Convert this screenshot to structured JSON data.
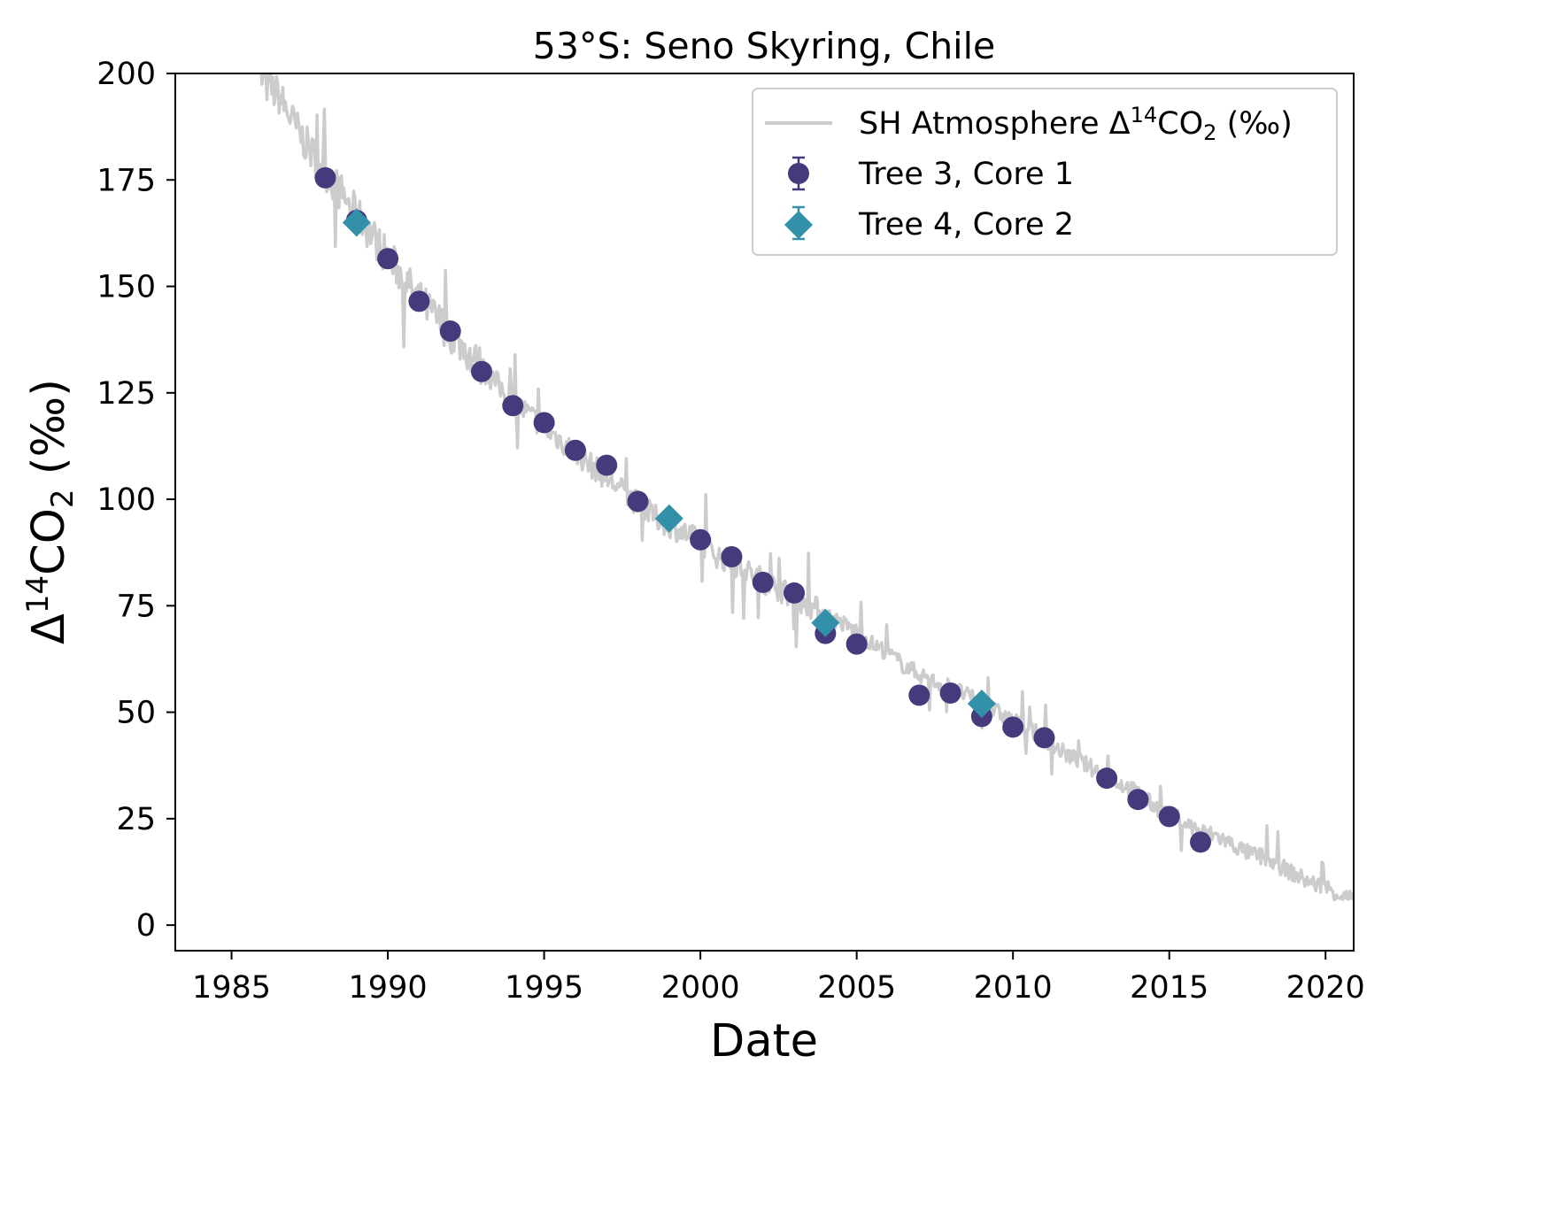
{
  "chart_data": {
    "type": "scatter",
    "title": "53°S: Seno Skyring, Chile",
    "xlabel": "Date",
    "ylabel": "Δ14CO2 (‰)",
    "xlim": [
      1983.2,
      2020.9
    ],
    "ylim": [
      -6,
      200
    ],
    "x_ticks": [
      "1985",
      "1990",
      "1995",
      "2000",
      "2005",
      "2010",
      "2015",
      "2020"
    ],
    "y_ticks": [
      "0",
      "25",
      "50",
      "75",
      "100",
      "125",
      "150",
      "175",
      "200"
    ],
    "grid": false,
    "legend_position": "top-right",
    "colors": {
      "atmosphere": "#cccccc",
      "tree3": "#443a7c",
      "tree4": "#3291a8"
    },
    "legend": {
      "atmosphere": "SH Atmosphere Δ14CO2 (‰)",
      "tree3": "Tree 3, Core 1",
      "tree4": "Tree 4, Core 2"
    },
    "atmosphere_series": {
      "name": "SH Atmosphere Δ14CO2 (‰)",
      "x": [
        1985.7,
        1986.0,
        1986.5,
        1987.0,
        1987.5,
        1988.0,
        1988.5,
        1989.0,
        1989.5,
        1990.0,
        1990.5,
        1991.0,
        1991.5,
        1992.0,
        1992.5,
        1993.0,
        1993.5,
        1994.0,
        1994.5,
        1995.0,
        1995.5,
        1996.0,
        1996.5,
        1997.0,
        1997.5,
        1998.0,
        1998.5,
        1999.0,
        1999.5,
        2000.0,
        2000.5,
        2001.0,
        2001.5,
        2002.0,
        2002.5,
        2003.0,
        2003.5,
        2004.0,
        2004.5,
        2005.0,
        2005.5,
        2006.0,
        2006.5,
        2007.0,
        2007.5,
        2008.0,
        2008.5,
        2009.0,
        2009.5,
        2010.0,
        2010.5,
        2011.0,
        2011.5,
        2012.0,
        2012.5,
        2013.0,
        2013.5,
        2014.0,
        2014.5,
        2015.0,
        2015.5,
        2016.0,
        2016.5,
        2017.0,
        2017.5,
        2018.0,
        2018.5,
        2019.0,
        2019.5,
        2020.0,
        2020.5,
        2020.9
      ],
      "y": [
        205,
        198,
        195,
        188,
        182,
        177,
        172,
        167,
        162,
        157,
        152,
        147,
        143,
        139,
        135,
        131,
        127,
        123,
        120,
        117,
        114,
        111,
        108,
        105,
        102,
        99,
        96,
        94,
        92,
        90,
        87,
        85,
        83,
        81,
        79,
        77,
        75,
        73,
        71,
        69,
        66,
        64,
        61,
        59,
        57,
        56,
        54,
        52,
        50,
        48,
        46,
        44,
        41,
        39,
        37,
        35,
        33,
        31,
        28,
        26,
        24,
        22,
        21,
        19,
        17,
        16,
        14,
        12,
        10,
        9,
        7,
        6
      ]
    },
    "series": [
      {
        "name": "Tree 3, Core 1",
        "marker": "circle",
        "x": [
          1988,
          1989,
          1990,
          1991,
          1992,
          1993,
          1994,
          1995,
          1996,
          1997,
          1998,
          2000,
          2001,
          2002,
          2003,
          2004,
          2005,
          2007,
          2008,
          2009,
          2010,
          2011,
          2013,
          2014,
          2015,
          2016
        ],
        "y": [
          175.5,
          165.5,
          156.5,
          146.5,
          139.5,
          130,
          122,
          118,
          111.5,
          108,
          99.5,
          90.5,
          86.5,
          80.5,
          78,
          68.5,
          66,
          54,
          54.5,
          49,
          46.5,
          44,
          34.5,
          29.5,
          25.5,
          19.5
        ]
      },
      {
        "name": "Tree 4, Core 2",
        "marker": "diamond",
        "x": [
          1989,
          1999,
          2004,
          2009
        ],
        "y": [
          165,
          95.5,
          71,
          52
        ]
      }
    ]
  }
}
